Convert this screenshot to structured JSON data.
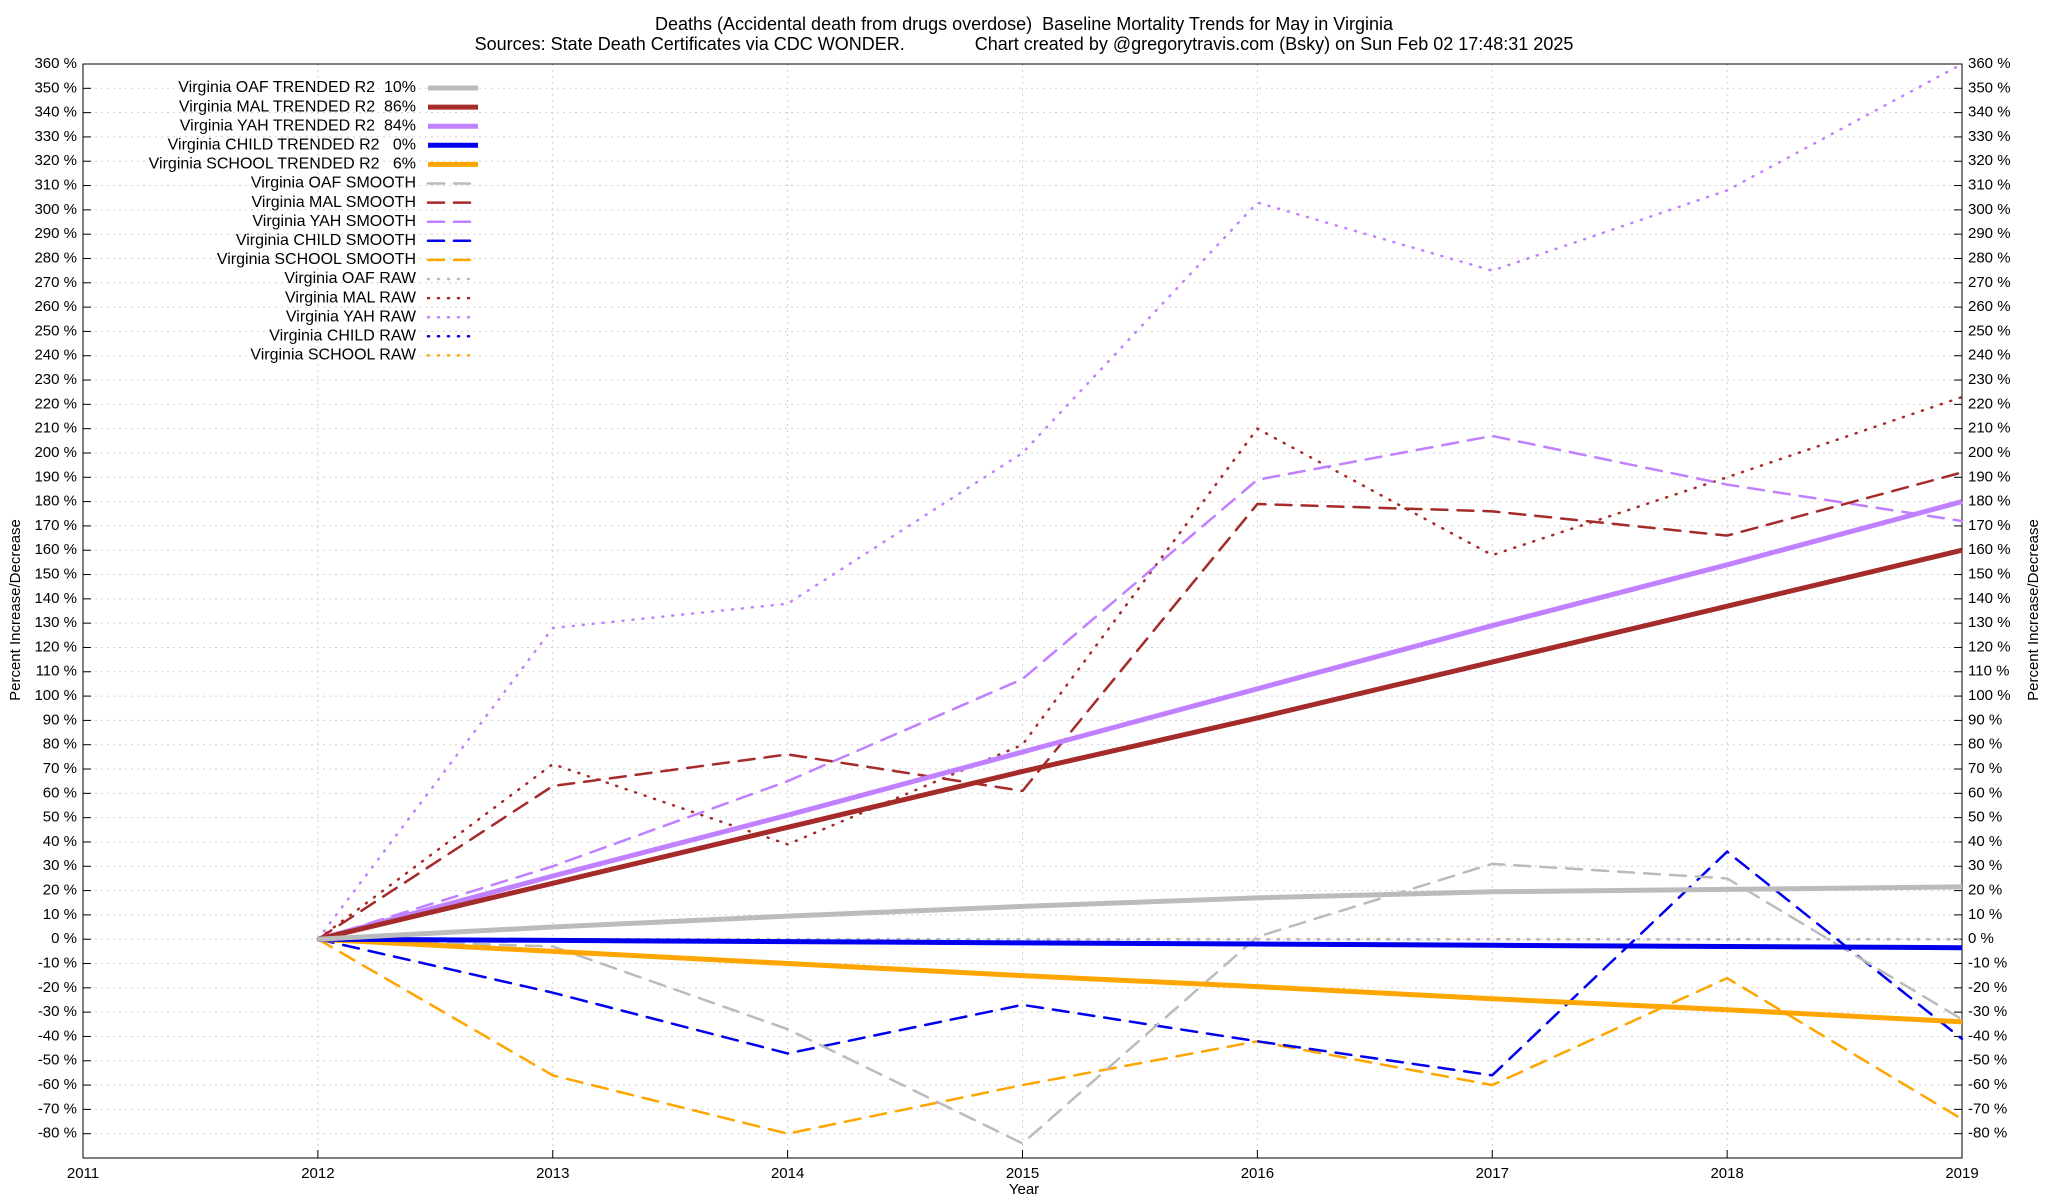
{
  "chart_data": {
    "type": "line",
    "title": "Deaths (Accidental death from drugs overdose)  Baseline Mortality Trends for May in Virginia",
    "subtitle": "Sources: State Death Certificates via CDC WONDER.              Chart created by @gregorytravis.com (Bsky) on Sun Feb 02 17:48:31 2025",
    "x_label": "Year",
    "y_label": "Percent Increase/Decrease",
    "y2_label": "Percent Increase/Decrease",
    "xlim": [
      2011,
      2019
    ],
    "xticks": [
      2011,
      2012,
      2013,
      2014,
      2015,
      2016,
      2017,
      2018,
      2019
    ],
    "ylim": [
      -90,
      360
    ],
    "yticks": [
      {
        "value": -80,
        "label": "-80 %"
      },
      {
        "value": -70,
        "label": "-70 %"
      },
      {
        "value": -60,
        "label": "-60 %"
      },
      {
        "value": -50,
        "label": "-50 %"
      },
      {
        "value": -40,
        "label": "-40 %"
      },
      {
        "value": -30,
        "label": "-30 %"
      },
      {
        "value": -20,
        "label": "-20 %"
      },
      {
        "value": -10,
        "label": "-10 %"
      },
      {
        "value": 0,
        "label": "0 %"
      },
      {
        "value": 10,
        "label": "10 %"
      },
      {
        "value": 20,
        "label": "20 %"
      },
      {
        "value": 30,
        "label": "30 %"
      },
      {
        "value": 40,
        "label": "40 %"
      },
      {
        "value": 50,
        "label": "50 %"
      },
      {
        "value": 60,
        "label": "60 %"
      },
      {
        "value": 70,
        "label": "70 %"
      },
      {
        "value": 80,
        "label": "80 %"
      },
      {
        "value": 90,
        "label": "90 %"
      },
      {
        "value": 100,
        "label": "100 %"
      },
      {
        "value": 110,
        "label": "110 %"
      },
      {
        "value": 120,
        "label": "120 %"
      },
      {
        "value": 130,
        "label": "130 %"
      },
      {
        "value": 140,
        "label": "140 %"
      },
      {
        "value": 150,
        "label": "150 %"
      },
      {
        "value": 160,
        "label": "160 %"
      },
      {
        "value": 170,
        "label": "170 %"
      },
      {
        "value": 180,
        "label": "180 %"
      },
      {
        "value": 190,
        "label": "190 %"
      },
      {
        "value": 200,
        "label": "200 %"
      },
      {
        "value": 210,
        "label": "210 %"
      },
      {
        "value": 220,
        "label": "220 %"
      },
      {
        "value": 230,
        "label": "230 %"
      },
      {
        "value": 240,
        "label": "240 %"
      },
      {
        "value": 250,
        "label": "250 %"
      },
      {
        "value": 260,
        "label": "260 %"
      },
      {
        "value": 270,
        "label": "270 %"
      },
      {
        "value": 280,
        "label": "280 %"
      },
      {
        "value": 290,
        "label": "290 %"
      },
      {
        "value": 300,
        "label": "300 %"
      },
      {
        "value": 310,
        "label": "310 %"
      },
      {
        "value": 320,
        "label": "320 %"
      },
      {
        "value": 330,
        "label": "330 %"
      },
      {
        "value": 340,
        "label": "340 %"
      },
      {
        "value": 350,
        "label": "350 %"
      },
      {
        "value": 360,
        "label": "360 %"
      }
    ],
    "grid": true,
    "legend": "top-left",
    "x": [
      2012,
      2013,
      2014,
      2015,
      2016,
      2017,
      2018,
      2019
    ],
    "series": [
      {
        "name": "Virginia OAF TRENDED R2  10%",
        "color": "#bbbbbb",
        "style": "solid",
        "values": [
          0,
          5,
          9.5,
          13.5,
          17,
          19.5,
          20.5,
          21.5
        ]
      },
      {
        "name": "Virginia MAL TRENDED R2  86%",
        "color": "#a52a2a",
        "style": "solid",
        "values": [
          0,
          23,
          46,
          69,
          91,
          114,
          137,
          160
        ]
      },
      {
        "name": "Virginia YAH TRENDED R2  84%",
        "color": "#c080ff",
        "style": "solid",
        "values": [
          0,
          26,
          51,
          77,
          103,
          129,
          154,
          180
        ]
      },
      {
        "name": "Virginia CHILD TRENDED R2   0%",
        "color": "#0000ee",
        "style": "solid",
        "values": [
          0,
          -0.5,
          -1,
          -1.5,
          -2,
          -2.5,
          -3,
          -3.5
        ]
      },
      {
        "name": "Virginia SCHOOL TRENDED R2   6%",
        "color": "#ffa500",
        "style": "solid",
        "values": [
          0,
          -5,
          -10,
          -15,
          -19.5,
          -24.5,
          -29,
          -34
        ]
      },
      {
        "name": "Virginia OAF SMOOTH",
        "color": "#bbbbbb",
        "style": "dashed",
        "values": [
          0,
          -3,
          -37,
          -84,
          1,
          31,
          25,
          -33
        ]
      },
      {
        "name": "Virginia MAL SMOOTH",
        "color": "#a52a2a",
        "style": "dashed",
        "values": [
          0,
          63,
          76,
          61,
          179,
          176,
          166,
          192
        ]
      },
      {
        "name": "Virginia YAH SMOOTH",
        "color": "#c080ff",
        "style": "dashed",
        "values": [
          0,
          30,
          65,
          107,
          189,
          207,
          187,
          172
        ]
      },
      {
        "name": "Virginia CHILD SMOOTH",
        "color": "#0000ee",
        "style": "dashed",
        "values": [
          0,
          -22,
          -47,
          -27,
          -42,
          -56,
          36,
          -41
        ]
      },
      {
        "name": "Virginia SCHOOL SMOOTH",
        "color": "#ffa500",
        "style": "dashed",
        "values": [
          0,
          -56,
          -80,
          -60,
          -42,
          -60,
          -16,
          -74
        ]
      },
      {
        "name": "Virginia OAF RAW",
        "color": "#bbbbbb",
        "style": "dotted",
        "values": [
          0,
          0,
          0,
          0,
          0,
          0,
          0,
          0
        ]
      },
      {
        "name": "Virginia MAL RAW",
        "color": "#a52a2a",
        "style": "dotted",
        "values": [
          0,
          72,
          39,
          80,
          210,
          158,
          190,
          223
        ]
      },
      {
        "name": "Virginia YAH RAW",
        "color": "#c080ff",
        "style": "dotted",
        "values": [
          0,
          128,
          138,
          200,
          303,
          275,
          308,
          360
        ]
      },
      {
        "name": "Virginia CHILD RAW",
        "color": "#0000ee",
        "style": "dotted",
        "values": [
          0,
          0,
          0,
          0,
          0,
          0,
          0,
          0
        ]
      },
      {
        "name": "Virginia SCHOOL RAW",
        "color": "#ffa500",
        "style": "dotted",
        "values": [
          0,
          0,
          0,
          0,
          0,
          0,
          0,
          0
        ]
      }
    ]
  }
}
